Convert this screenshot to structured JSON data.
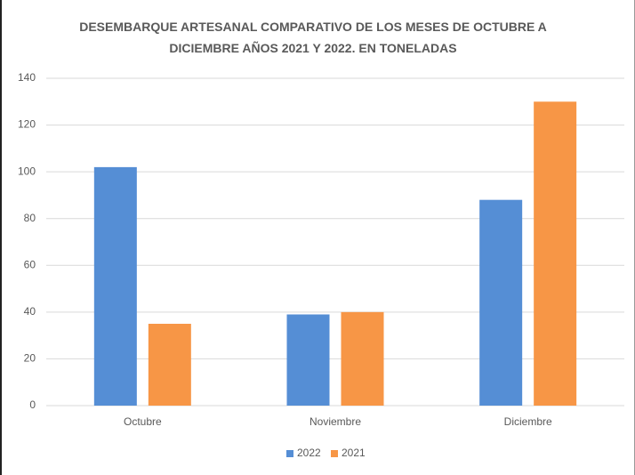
{
  "chart_data": {
    "type": "bar",
    "title": "DESEMBARQUE ARTESANAL COMPARATIVO DE LOS MESES DE OCTUBRE A DICIEMBRE AÑOS 2021 Y 2022. EN TONELADAS",
    "categories": [
      "Octubre",
      "Noviembre",
      "Diciembre"
    ],
    "series": [
      {
        "name": "2022",
        "color": "#558ed5",
        "values": [
          102,
          39,
          88
        ]
      },
      {
        "name": "2021",
        "color": "#f79646",
        "values": [
          35,
          40,
          130
        ]
      }
    ],
    "ylim": [
      0,
      140
    ],
    "yticks": [
      0,
      20,
      40,
      60,
      80,
      100,
      120,
      140
    ],
    "grid": true,
    "legend": "bottom"
  }
}
